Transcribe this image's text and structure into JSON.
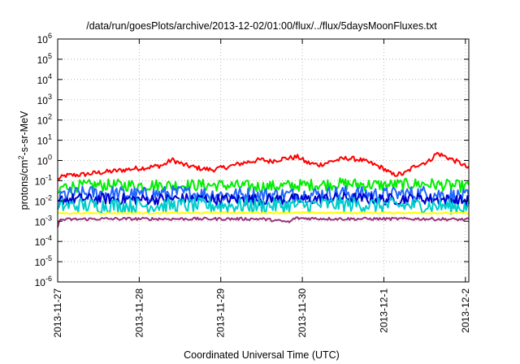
{
  "chart_data": {
    "type": "line",
    "title": "/data/run/goesPlots/archive/2013-12-02/01:00/flux/../flux/5daysMoonFluxes.txt",
    "xlabel": "Coordinated Universal Time (UTC)",
    "ylabel": {
      "prefix": "protons/cm",
      "sup": "2",
      "suffix": "-s-sr-MeV"
    },
    "yscale": "log",
    "ylim": [
      1e-06,
      1000000.0
    ],
    "xlim": [
      "2013-11-27",
      "2013-12-02 01:00"
    ],
    "grid": true,
    "y_ticks": [
      {
        "value": 1e-06,
        "base": "10",
        "exp": "-6"
      },
      {
        "value": 1e-05,
        "base": "10",
        "exp": "-5"
      },
      {
        "value": 0.0001,
        "base": "10",
        "exp": "-4"
      },
      {
        "value": 0.001,
        "base": "10",
        "exp": "-3"
      },
      {
        "value": 0.01,
        "base": "10",
        "exp": "-2"
      },
      {
        "value": 0.1,
        "base": "10",
        "exp": "-1"
      },
      {
        "value": 1.0,
        "base": "10",
        "exp": "0"
      },
      {
        "value": 10.0,
        "base": "10",
        "exp": "1"
      },
      {
        "value": 100.0,
        "base": "10",
        "exp": "2"
      },
      {
        "value": 1000.0,
        "base": "10",
        "exp": "3"
      },
      {
        "value": 10000.0,
        "base": "10",
        "exp": "4"
      },
      {
        "value": 100000.0,
        "base": "10",
        "exp": "5"
      },
      {
        "value": 1000000.0,
        "base": "10",
        "exp": "6"
      }
    ],
    "x_ticks": [
      {
        "day": 0,
        "label": "2013-11-27"
      },
      {
        "day": 1,
        "label": "2013-11-28"
      },
      {
        "day": 2,
        "label": "2013-11-29"
      },
      {
        "day": 3,
        "label": "2013-11-30"
      },
      {
        "day": 4,
        "label": "2013-12-1"
      },
      {
        "day": 5,
        "label": "2013-12-2"
      }
    ],
    "series": [
      {
        "color": "#ff0000",
        "noise": 0.12,
        "points": [
          [
            0.0,
            0.12
          ],
          [
            0.1,
            0.18
          ],
          [
            0.3,
            0.2
          ],
          [
            0.5,
            0.25
          ],
          [
            0.7,
            0.3
          ],
          [
            0.9,
            0.38
          ],
          [
            1.1,
            0.45
          ],
          [
            1.3,
            0.6
          ],
          [
            1.4,
            1.1
          ],
          [
            1.55,
            0.6
          ],
          [
            1.75,
            0.4
          ],
          [
            1.9,
            0.35
          ],
          [
            2.1,
            0.5
          ],
          [
            2.3,
            0.8
          ],
          [
            2.5,
            1.1
          ],
          [
            2.6,
            0.9
          ],
          [
            2.75,
            1.2
          ],
          [
            2.95,
            1.5
          ],
          [
            3.05,
            0.8
          ],
          [
            3.2,
            0.6
          ],
          [
            3.4,
            1.0
          ],
          [
            3.55,
            1.3
          ],
          [
            3.7,
            1.1
          ],
          [
            3.85,
            0.7
          ],
          [
            4.0,
            0.4
          ],
          [
            4.1,
            0.2
          ],
          [
            4.25,
            0.22
          ],
          [
            4.4,
            0.6
          ],
          [
            4.55,
            0.9
          ],
          [
            4.65,
            2.3
          ],
          [
            4.8,
            1.3
          ],
          [
            4.95,
            0.7
          ],
          [
            5.04,
            0.4
          ]
        ]
      },
      {
        "color": "#00ee00",
        "noise": 0.3,
        "points": [
          [
            0.0,
            0.02
          ],
          [
            0.05,
            0.05
          ],
          [
            0.5,
            0.06
          ],
          [
            1.0,
            0.06
          ],
          [
            1.5,
            0.06
          ],
          [
            2.0,
            0.06
          ],
          [
            2.5,
            0.05
          ],
          [
            3.0,
            0.06
          ],
          [
            3.5,
            0.07
          ],
          [
            4.0,
            0.06
          ],
          [
            4.5,
            0.07
          ],
          [
            5.04,
            0.05
          ]
        ]
      },
      {
        "color": "#2266ff",
        "noise": 0.38,
        "points": [
          [
            0.0,
            0.005
          ],
          [
            0.05,
            0.02
          ],
          [
            0.5,
            0.025
          ],
          [
            1.0,
            0.02
          ],
          [
            1.5,
            0.025
          ],
          [
            2.0,
            0.02
          ],
          [
            2.5,
            0.02
          ],
          [
            3.0,
            0.02
          ],
          [
            3.5,
            0.025
          ],
          [
            4.0,
            0.02
          ],
          [
            4.5,
            0.025
          ],
          [
            5.04,
            0.015
          ]
        ]
      },
      {
        "color": "#0000cc",
        "noise": 0.28,
        "points": [
          [
            0.0,
            0.006
          ],
          [
            0.05,
            0.012
          ],
          [
            0.5,
            0.013
          ],
          [
            1.0,
            0.012
          ],
          [
            1.5,
            0.013
          ],
          [
            2.0,
            0.012
          ],
          [
            2.5,
            0.012
          ],
          [
            3.0,
            0.012
          ],
          [
            3.5,
            0.014
          ],
          [
            4.0,
            0.012
          ],
          [
            4.5,
            0.013
          ],
          [
            5.04,
            0.01
          ]
        ]
      },
      {
        "color": "#00cccc",
        "noise": 0.38,
        "points": [
          [
            0.0,
            0.003
          ],
          [
            0.05,
            0.006
          ],
          [
            0.5,
            0.006
          ],
          [
            1.0,
            0.006
          ],
          [
            1.5,
            0.006
          ],
          [
            2.0,
            0.006
          ],
          [
            2.5,
            0.006
          ],
          [
            3.0,
            0.006
          ],
          [
            3.5,
            0.007
          ],
          [
            4.0,
            0.006
          ],
          [
            4.5,
            0.006
          ],
          [
            5.04,
            0.005
          ]
        ]
      },
      {
        "color": "#ffff00",
        "noise": 0.04,
        "points": [
          [
            0.0,
            0.0025
          ],
          [
            1.0,
            0.0025
          ],
          [
            2.0,
            0.0026
          ],
          [
            3.0,
            0.0026
          ],
          [
            4.0,
            0.0026
          ],
          [
            5.04,
            0.0025
          ]
        ]
      },
      {
        "color": "#993377",
        "noise": 0.07,
        "points": [
          [
            0.0,
            0.0005
          ],
          [
            0.03,
            0.0012
          ],
          [
            0.5,
            0.0013
          ],
          [
            1.0,
            0.0013
          ],
          [
            1.5,
            0.0013
          ],
          [
            2.0,
            0.0013
          ],
          [
            2.5,
            0.0013
          ],
          [
            2.85,
            0.0009
          ],
          [
            2.9,
            0.0014
          ],
          [
            3.5,
            0.0013
          ],
          [
            4.0,
            0.0013
          ],
          [
            4.5,
            0.0013
          ],
          [
            5.04,
            0.0012
          ]
        ]
      }
    ]
  }
}
